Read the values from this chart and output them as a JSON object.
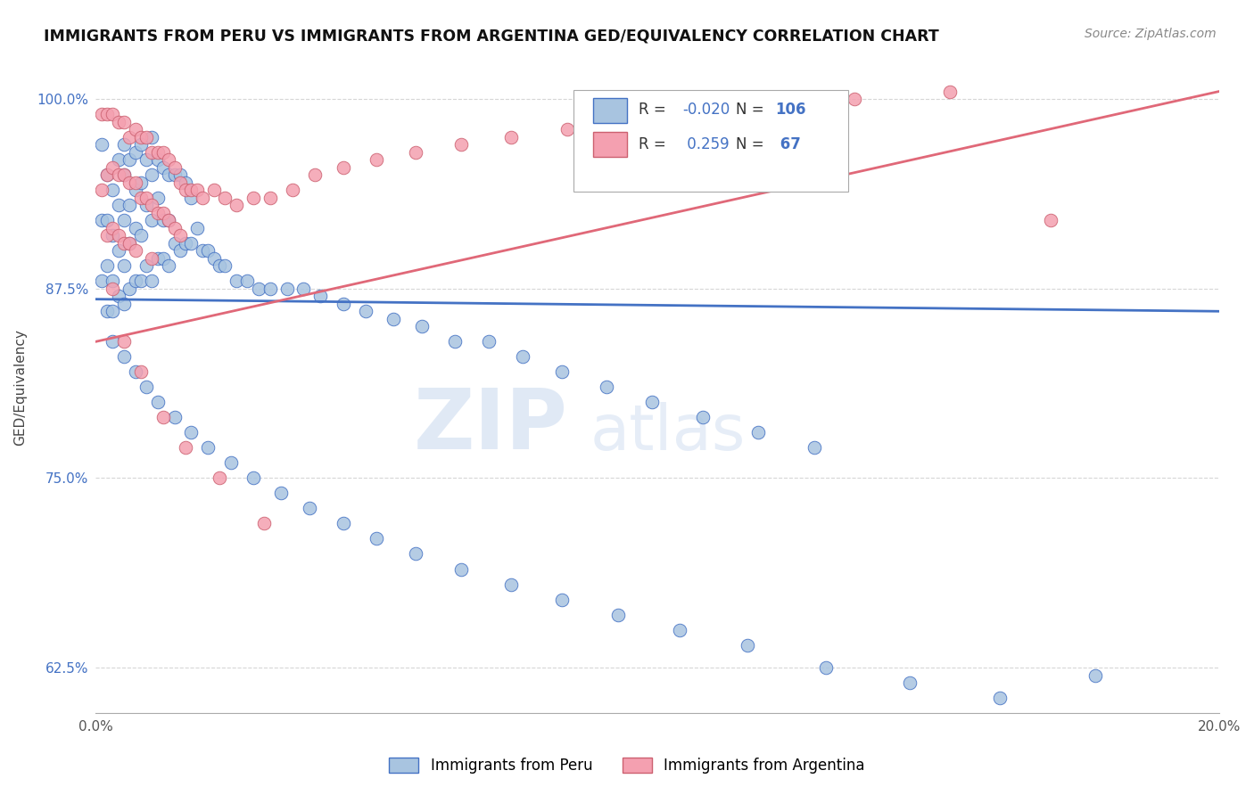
{
  "title": "IMMIGRANTS FROM PERU VS IMMIGRANTS FROM ARGENTINA GED/EQUIVALENCY CORRELATION CHART",
  "source_text": "Source: ZipAtlas.com",
  "ylabel": "GED/Equivalency",
  "xlim": [
    0.0,
    0.2
  ],
  "ylim": [
    0.595,
    1.025
  ],
  "xticks": [
    0.0,
    0.05,
    0.1,
    0.15,
    0.2
  ],
  "xtick_labels": [
    "0.0%",
    "",
    "",
    "",
    "20.0%"
  ],
  "ytick_labels": [
    "62.5%",
    "75.0%",
    "87.5%",
    "100.0%"
  ],
  "yticks": [
    0.625,
    0.75,
    0.875,
    1.0
  ],
  "peru_R": -0.02,
  "peru_N": 106,
  "argentina_R": 0.259,
  "argentina_N": 67,
  "peru_color": "#a8c4e0",
  "argentina_color": "#f4a0b0",
  "peru_line_color": "#4472c4",
  "argentina_line_color": "#e06878",
  "background_color": "#ffffff",
  "grid_color": "#cccccc",
  "peru_line_y_at_0": 0.868,
  "peru_line_y_at_020": 0.86,
  "arg_line_y_at_0": 0.84,
  "arg_line_y_at_020": 1.005,
  "peru_scatter_x": [
    0.001,
    0.001,
    0.001,
    0.002,
    0.002,
    0.002,
    0.002,
    0.003,
    0.003,
    0.003,
    0.003,
    0.003,
    0.004,
    0.004,
    0.004,
    0.004,
    0.005,
    0.005,
    0.005,
    0.005,
    0.005,
    0.006,
    0.006,
    0.006,
    0.006,
    0.007,
    0.007,
    0.007,
    0.007,
    0.008,
    0.008,
    0.008,
    0.008,
    0.009,
    0.009,
    0.009,
    0.01,
    0.01,
    0.01,
    0.01,
    0.011,
    0.011,
    0.011,
    0.012,
    0.012,
    0.012,
    0.013,
    0.013,
    0.013,
    0.014,
    0.014,
    0.015,
    0.015,
    0.016,
    0.016,
    0.017,
    0.017,
    0.018,
    0.019,
    0.02,
    0.021,
    0.022,
    0.023,
    0.025,
    0.027,
    0.029,
    0.031,
    0.034,
    0.037,
    0.04,
    0.044,
    0.048,
    0.053,
    0.058,
    0.064,
    0.07,
    0.076,
    0.083,
    0.091,
    0.099,
    0.108,
    0.118,
    0.128,
    0.005,
    0.007,
    0.009,
    0.011,
    0.014,
    0.017,
    0.02,
    0.024,
    0.028,
    0.033,
    0.038,
    0.044,
    0.05,
    0.057,
    0.065,
    0.074,
    0.083,
    0.093,
    0.104,
    0.116,
    0.13,
    0.145,
    0.161,
    0.178
  ],
  "peru_scatter_y": [
    0.97,
    0.92,
    0.88,
    0.95,
    0.92,
    0.89,
    0.86,
    0.94,
    0.91,
    0.88,
    0.86,
    0.84,
    0.96,
    0.93,
    0.9,
    0.87,
    0.97,
    0.95,
    0.92,
    0.89,
    0.865,
    0.96,
    0.93,
    0.905,
    0.875,
    0.965,
    0.94,
    0.915,
    0.88,
    0.97,
    0.945,
    0.91,
    0.88,
    0.96,
    0.93,
    0.89,
    0.975,
    0.95,
    0.92,
    0.88,
    0.96,
    0.935,
    0.895,
    0.955,
    0.92,
    0.895,
    0.95,
    0.92,
    0.89,
    0.95,
    0.905,
    0.95,
    0.9,
    0.945,
    0.905,
    0.935,
    0.905,
    0.915,
    0.9,
    0.9,
    0.895,
    0.89,
    0.89,
    0.88,
    0.88,
    0.875,
    0.875,
    0.875,
    0.875,
    0.87,
    0.865,
    0.86,
    0.855,
    0.85,
    0.84,
    0.84,
    0.83,
    0.82,
    0.81,
    0.8,
    0.79,
    0.78,
    0.77,
    0.83,
    0.82,
    0.81,
    0.8,
    0.79,
    0.78,
    0.77,
    0.76,
    0.75,
    0.74,
    0.73,
    0.72,
    0.71,
    0.7,
    0.69,
    0.68,
    0.67,
    0.66,
    0.65,
    0.64,
    0.625,
    0.615,
    0.605,
    0.62
  ],
  "argentina_scatter_x": [
    0.001,
    0.001,
    0.002,
    0.002,
    0.002,
    0.003,
    0.003,
    0.003,
    0.004,
    0.004,
    0.004,
    0.005,
    0.005,
    0.005,
    0.006,
    0.006,
    0.006,
    0.007,
    0.007,
    0.007,
    0.008,
    0.008,
    0.009,
    0.009,
    0.01,
    0.01,
    0.01,
    0.011,
    0.011,
    0.012,
    0.012,
    0.013,
    0.013,
    0.014,
    0.014,
    0.015,
    0.015,
    0.016,
    0.017,
    0.018,
    0.019,
    0.021,
    0.023,
    0.025,
    0.028,
    0.031,
    0.035,
    0.039,
    0.044,
    0.05,
    0.057,
    0.065,
    0.074,
    0.084,
    0.095,
    0.107,
    0.12,
    0.135,
    0.152,
    0.17,
    0.003,
    0.005,
    0.008,
    0.012,
    0.016,
    0.022,
    0.03
  ],
  "argentina_scatter_y": [
    0.99,
    0.94,
    0.99,
    0.95,
    0.91,
    0.99,
    0.955,
    0.915,
    0.985,
    0.95,
    0.91,
    0.985,
    0.95,
    0.905,
    0.975,
    0.945,
    0.905,
    0.98,
    0.945,
    0.9,
    0.975,
    0.935,
    0.975,
    0.935,
    0.965,
    0.93,
    0.895,
    0.965,
    0.925,
    0.965,
    0.925,
    0.96,
    0.92,
    0.955,
    0.915,
    0.945,
    0.91,
    0.94,
    0.94,
    0.94,
    0.935,
    0.94,
    0.935,
    0.93,
    0.935,
    0.935,
    0.94,
    0.95,
    0.955,
    0.96,
    0.965,
    0.97,
    0.975,
    0.98,
    0.985,
    0.99,
    0.995,
    1.0,
    1.005,
    0.92,
    0.875,
    0.84,
    0.82,
    0.79,
    0.77,
    0.75,
    0.72
  ]
}
